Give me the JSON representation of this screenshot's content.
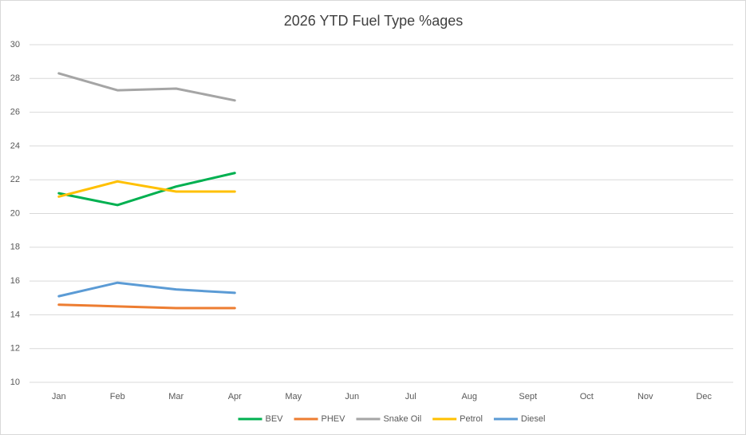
{
  "chart_data": {
    "type": "line",
    "title": "2026 YTD Fuel Type %ages",
    "categories": [
      "Jan",
      "Feb",
      "Mar",
      "Apr",
      "May",
      "Jun",
      "Jul",
      "Aug",
      "Sept",
      "Oct",
      "Nov",
      "Dec"
    ],
    "series": [
      {
        "name": "BEV",
        "color": "#00b050",
        "values": [
          21.2,
          20.5,
          21.6,
          22.4,
          null,
          null,
          null,
          null,
          null,
          null,
          null,
          null
        ]
      },
      {
        "name": "PHEV",
        "color": "#ed7d31",
        "values": [
          14.6,
          14.5,
          14.4,
          14.4,
          null,
          null,
          null,
          null,
          null,
          null,
          null,
          null
        ]
      },
      {
        "name": "Snake Oil",
        "color": "#a5a5a5",
        "values": [
          28.3,
          27.3,
          27.4,
          26.7,
          null,
          null,
          null,
          null,
          null,
          null,
          null,
          null
        ]
      },
      {
        "name": "Petrol",
        "color": "#ffc000",
        "values": [
          21.0,
          21.9,
          21.3,
          21.3,
          null,
          null,
          null,
          null,
          null,
          null,
          null,
          null
        ]
      },
      {
        "name": "Diesel",
        "color": "#5b9bd5",
        "values": [
          15.1,
          15.9,
          15.5,
          15.3,
          null,
          null,
          null,
          null,
          null,
          null,
          null,
          null
        ]
      }
    ],
    "ylim": [
      10,
      30
    ],
    "yticks": [
      10,
      12,
      14,
      16,
      18,
      20,
      22,
      24,
      26,
      28,
      30
    ],
    "grid": true,
    "legend": "bottom"
  }
}
